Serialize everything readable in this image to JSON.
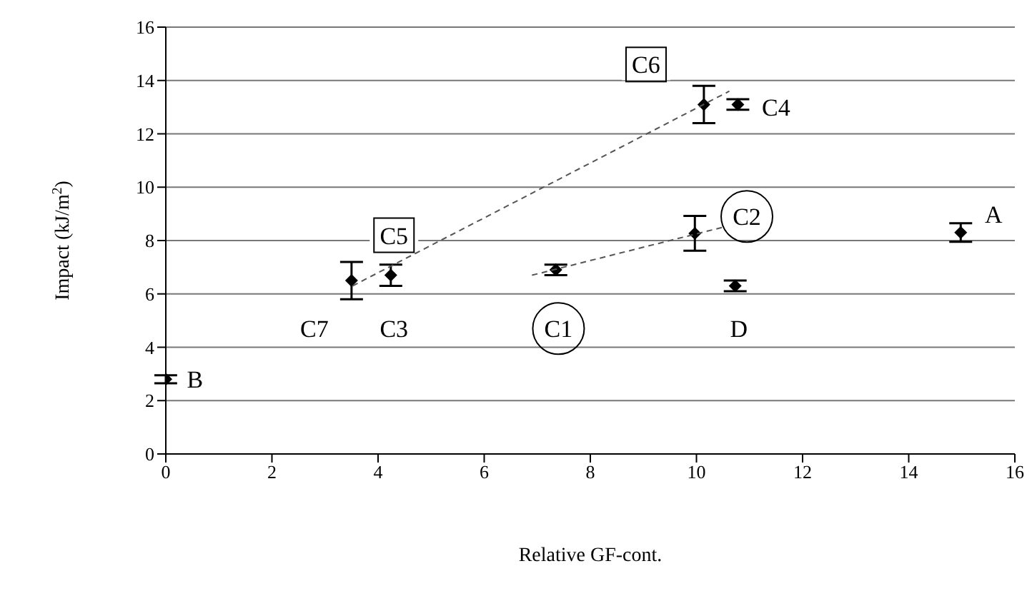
{
  "chart_data": {
    "type": "scatter",
    "xlabel": "Relative GF-cont.",
    "ylabel": "Impact (kJ/m$^{2}$)",
    "xlim": [
      0,
      16
    ],
    "xticks": [
      0,
      2,
      4,
      6,
      8,
      10,
      12,
      14,
      16
    ],
    "ylim": [
      0,
      16
    ],
    "yticks": [
      0,
      2,
      4,
      6,
      8,
      10,
      12,
      14,
      16
    ],
    "grid": "y",
    "legend": false,
    "series": [
      {
        "marker": "diamond",
        "color": "#000000",
        "x": [
          0,
          3.5,
          4.24,
          7.35,
          9.97,
          10.73,
          10.14,
          10.78,
          14.98
        ],
        "values": [
          2.8,
          6.5,
          6.7,
          6.9,
          8.27,
          6.3,
          13.1,
          13.1,
          8.3
        ],
        "errors": [
          0.15,
          0.7,
          0.4,
          0.2,
          0.65,
          0.2,
          0.7,
          0.2,
          0.35
        ]
      },
      {
        "type": "line",
        "color": "#555555",
        "line_style": "dashed",
        "marker": "none",
        "x": [
          3.52,
          10.62
        ],
        "values": [
          6.3,
          13.6
        ]
      },
      {
        "type": "line",
        "color": "#555555",
        "line_style": "dashed",
        "marker": "none",
        "x": [
          6.9,
          10.5
        ],
        "values": [
          6.7,
          8.5
        ]
      }
    ],
    "annotations": [
      {
        "text": "B",
        "x": 0.55,
        "y": 2.8
      },
      {
        "text": "C7",
        "x": 2.8,
        "y": 4.7
      },
      {
        "text": "C3",
        "x": 4.3,
        "y": 4.7
      },
      {
        "text": "C1",
        "x": 7.4,
        "y": 4.7
      },
      {
        "text": "D",
        "x": 10.8,
        "y": 4.7
      },
      {
        "text": "C5",
        "x": 4.3,
        "y": 8.2
      },
      {
        "text": "C2",
        "x": 10.95,
        "y": 8.9
      },
      {
        "text": "A",
        "x": 15.6,
        "y": 9.0
      },
      {
        "text": "C6",
        "x": 9.05,
        "y": 14.6
      },
      {
        "text": "C4",
        "x": 11.5,
        "y": 13.0
      }
    ]
  }
}
